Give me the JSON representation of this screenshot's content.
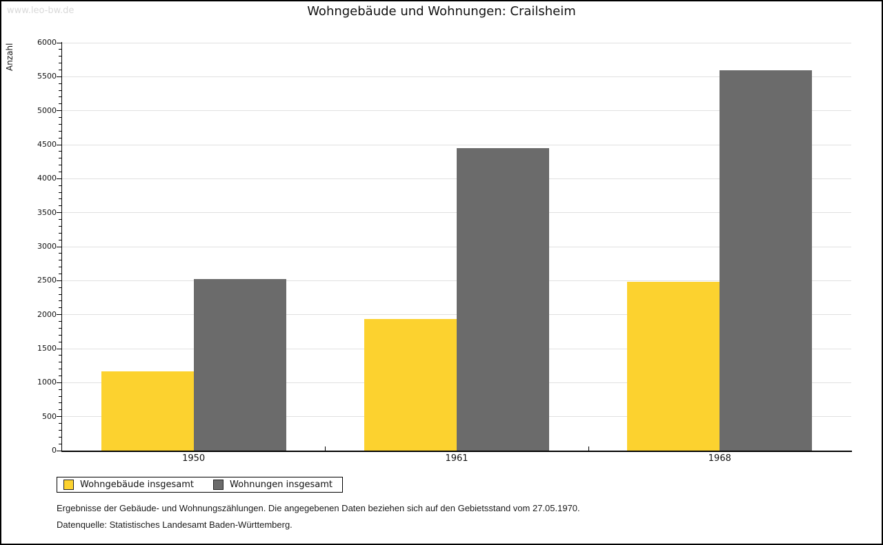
{
  "watermark": "www.leo-bw.de",
  "title": "Wohngebäude und Wohnungen: Crailsheim",
  "chart_data": {
    "type": "bar",
    "title": "Wohngebäude und Wohnungen: Crailsheim",
    "categories": [
      "1950",
      "1961",
      "1968"
    ],
    "series": [
      {
        "name": "Wohngebäude insgesamt",
        "color": "#FCD22F",
        "values": [
          1165,
          1940,
          2480
        ]
      },
      {
        "name": "Wohnungen insgesamt",
        "color": "#6B6B6B",
        "values": [
          2525,
          4450,
          5590
        ]
      }
    ],
    "xlabel": "",
    "ylabel": "Anzahl",
    "ylim": [
      0,
      6000
    ],
    "ytick_step": 500,
    "yminor_step": 100,
    "grid": true,
    "grid_color": "#e0e0e0",
    "legend_position": "bottom-left"
  },
  "footnotes": {
    "line1": "Ergebnisse der Gebäude- und Wohnungszählungen. Die angegebenen Daten beziehen sich auf den Gebietsstand vom 27.05.1970.",
    "line2": "Datenquelle: Statistisches Landesamt Baden-Württemberg."
  }
}
